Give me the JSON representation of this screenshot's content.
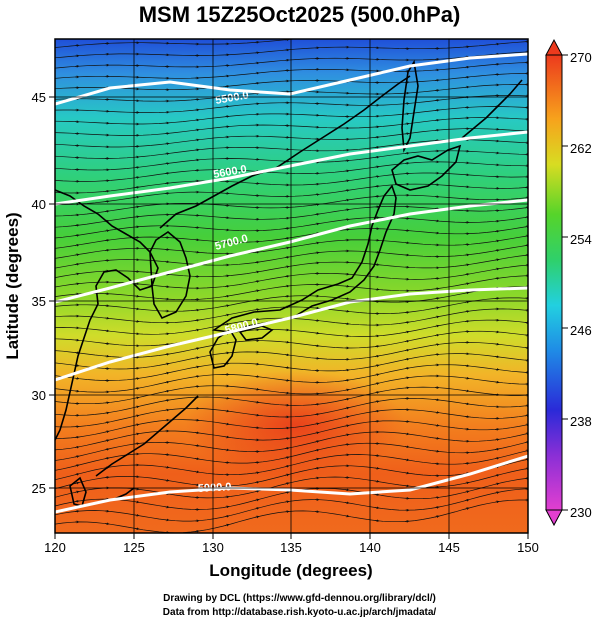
{
  "title": "MSM 15Z25Oct2025 (500.0hPa)",
  "x_axis": {
    "label": "Longitude (degrees)",
    "range": [
      120,
      150
    ],
    "ticks": [
      "120",
      "125",
      "130",
      "135",
      "140",
      "145",
      "150"
    ]
  },
  "y_axis": {
    "label": "Latitude  (degrees)",
    "range": [
      22.5,
      47.5
    ],
    "ticks": [
      "25",
      "30",
      "35",
      "40",
      "45"
    ]
  },
  "colorbar": {
    "range": [
      230,
      270
    ],
    "ticks": [
      "230",
      "238",
      "246",
      "254",
      "262",
      "270"
    ]
  },
  "contours": [
    {
      "label": "5900.0",
      "value": 5900
    },
    {
      "label": "5800.0",
      "value": 5800
    },
    {
      "label": "5700.0",
      "value": 5700
    },
    {
      "label": "5600.0",
      "value": 5600
    },
    {
      "label": "5500.0",
      "value": 5500
    }
  ],
  "credits": {
    "line1": "Drawing by DCL (https://www.gfd-dennou.org/library/dcl/)",
    "line2": "Data from http://database.rish.kyoto-u.ac.jp/arch/jmadata/"
  }
}
